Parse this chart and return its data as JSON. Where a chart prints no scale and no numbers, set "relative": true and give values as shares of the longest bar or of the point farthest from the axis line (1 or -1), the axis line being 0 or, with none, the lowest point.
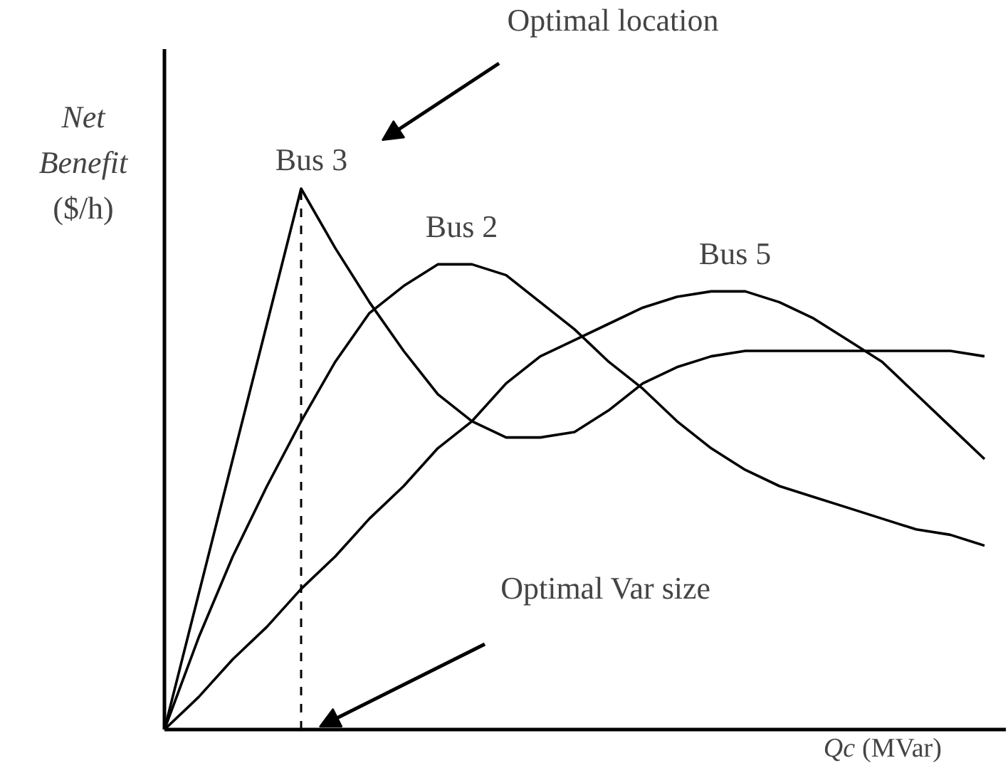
{
  "chart_data": {
    "type": "line",
    "relative": true,
    "xlabel": "Qc (MVar)",
    "ylabel": "Net Benefit ($/h)",
    "categories": [
      null,
      null,
      null,
      null,
      null,
      null,
      null,
      null,
      null,
      null,
      null,
      null,
      null,
      null,
      null,
      null,
      null,
      null,
      null,
      null,
      null,
      null,
      null,
      null,
      null
    ],
    "series": [
      {
        "name": "Bus 3",
        "color": "#000000",
        "values": [
          0,
          0.25,
          0.5,
          0.75,
          1,
          0.89,
          0.79,
          0.7,
          0.62,
          0.57,
          0.54,
          0.54,
          0.55,
          0.59,
          0.64,
          0.67,
          0.69,
          0.7,
          0.7,
          0.7,
          0.7,
          0.7,
          0.7,
          0.7,
          0.69
        ]
      },
      {
        "name": "Bus 2",
        "color": "#000000",
        "values": [
          0,
          0.17,
          0.32,
          0.45,
          0.57,
          0.68,
          0.77,
          0.82,
          0.86,
          0.86,
          0.84,
          0.79,
          0.74,
          0.68,
          0.63,
          0.57,
          0.52,
          0.48,
          0.45,
          0.43,
          0.41,
          0.39,
          0.37,
          0.36,
          0.34
        ]
      },
      {
        "name": "Bus 5",
        "color": "#000000",
        "values": [
          0,
          0.06,
          0.13,
          0.19,
          0.26,
          0.32,
          0.39,
          0.45,
          0.52,
          0.57,
          0.64,
          0.69,
          0.72,
          0.75,
          0.78,
          0.8,
          0.81,
          0.81,
          0.79,
          0.76,
          0.72,
          0.68,
          0.62,
          0.56,
          0.5
        ]
      }
    ],
    "annotations": [
      "Optimal location",
      "Optimal Var size"
    ],
    "line_style": "solid",
    "marker": "none",
    "grid": false
  }
}
